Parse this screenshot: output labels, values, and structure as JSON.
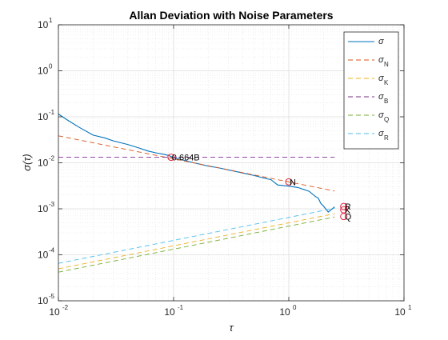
{
  "chart_data": {
    "type": "line",
    "title": "Allan Deviation with Noise Parameters",
    "xlabel": "τ",
    "ylabel": "σ(τ)",
    "xscale": "log",
    "yscale": "log",
    "xlim": [
      0.01,
      10
    ],
    "ylim": [
      1e-05,
      10
    ],
    "grid": true,
    "minor_grid": true,
    "x_ticks": [
      {
        "base": "10",
        "exp": "-2",
        "value": 0.01
      },
      {
        "base": "10",
        "exp": "-1",
        "value": 0.1
      },
      {
        "base": "10",
        "exp": "0",
        "value": 1
      },
      {
        "base": "10",
        "exp": "1",
        "value": 10
      }
    ],
    "y_ticks": [
      {
        "base": "10",
        "exp": "-5",
        "value": 1e-05
      },
      {
        "base": "10",
        "exp": "-4",
        "value": 0.0001
      },
      {
        "base": "10",
        "exp": "-3",
        "value": 0.001
      },
      {
        "base": "10",
        "exp": "-2",
        "value": 0.01
      },
      {
        "base": "10",
        "exp": "-1",
        "value": 0.1
      },
      {
        "base": "10",
        "exp": "0",
        "value": 1
      },
      {
        "base": "10",
        "exp": "1",
        "value": 10
      }
    ],
    "legend_position": "top-right",
    "series": [
      {
        "name": "σ",
        "sub": "",
        "style": "solid",
        "color": "#0072BD",
        "x": [
          0.01,
          0.012,
          0.015,
          0.02,
          0.025,
          0.03,
          0.04,
          0.05,
          0.06,
          0.07,
          0.08,
          0.09,
          0.1,
          0.12,
          0.15,
          0.2,
          0.25,
          0.3,
          0.4,
          0.5,
          0.6,
          0.7,
          0.8,
          1.0,
          1.2,
          1.5,
          1.7,
          1.8,
          1.9,
          2.0,
          2.2,
          2.5
        ],
        "y": [
          0.115,
          0.085,
          0.06,
          0.04,
          0.035,
          0.03,
          0.025,
          0.021,
          0.018,
          0.0165,
          0.0155,
          0.0145,
          0.013,
          0.0115,
          0.01,
          0.0085,
          0.0077,
          0.007,
          0.006,
          0.0053,
          0.0047,
          0.0043,
          0.0033,
          0.0031,
          0.0029,
          0.0024,
          0.00185,
          0.0017,
          0.0013,
          0.00115,
          0.00085,
          0.0011
        ]
      },
      {
        "name": "σ",
        "sub": "N",
        "style": "dashed",
        "color": "#D95319",
        "x": [
          0.01,
          2.5
        ],
        "y": [
          0.0385,
          0.00243
        ]
      },
      {
        "name": "σ",
        "sub": "K",
        "style": "dashed",
        "color": "#EDB120",
        "x": [
          0.01,
          2.5
        ],
        "y": [
          4.96e-05,
          0.000784
        ]
      },
      {
        "name": "σ",
        "sub": "B",
        "style": "dashed",
        "color": "#7E2F8E",
        "x": [
          0.01,
          2.5
        ],
        "y": [
          0.0132,
          0.0132
        ]
      },
      {
        "name": "σ",
        "sub": "Q",
        "style": "dashed",
        "color": "#77AC30",
        "x": [
          0.01,
          2.5
        ],
        "y": [
          4.2e-05,
          0.000664
        ]
      },
      {
        "name": "σ",
        "sub": "R",
        "style": "dashed",
        "color": "#4DBEEE",
        "x": [
          0.01,
          2.5
        ],
        "y": [
          6.52e-05,
          0.00103
        ]
      }
    ],
    "annotations": [
      {
        "x": 0.095,
        "y": 0.0132,
        "text": "0.664B"
      },
      {
        "x": 1.0,
        "y": 0.00385,
        "text": "N"
      },
      {
        "x": 3.0,
        "y": 0.00112,
        "text": "R"
      },
      {
        "x": 3.0,
        "y": 0.00095,
        "text": "K"
      },
      {
        "x": 3.0,
        "y": 0.00068,
        "text": "Q"
      }
    ],
    "marker_color": "#E0203C"
  }
}
